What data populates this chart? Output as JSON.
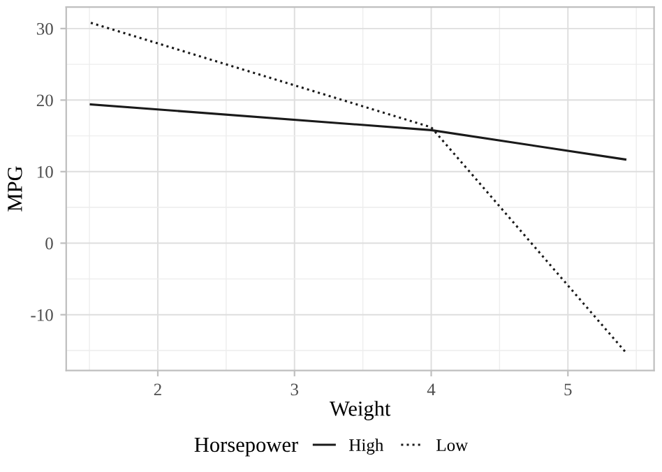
{
  "chart_data": {
    "type": "line",
    "xlabel": "Weight",
    "ylabel": "MPG",
    "legend_title": "Horsepower",
    "legend": "bottom",
    "grid": true,
    "xlim": [
      1.33,
      5.63
    ],
    "xticks": [
      2,
      3,
      4,
      5
    ],
    "ylim": [
      -17.8,
      33
    ],
    "yticks": [
      -10,
      0,
      10,
      20,
      30
    ],
    "series": [
      {
        "name": "High",
        "color": "#1a1a1a",
        "line_style": "solid",
        "x": [
          1.51,
          4.0,
          5.42
        ],
        "values": [
          19.4,
          15.8,
          11.7
        ]
      },
      {
        "name": "Low",
        "color": "#1a1a1a",
        "line_style": "dotted",
        "x": [
          1.51,
          4.0,
          5.42
        ],
        "values": [
          30.8,
          16.2,
          -15.2
        ]
      }
    ]
  }
}
